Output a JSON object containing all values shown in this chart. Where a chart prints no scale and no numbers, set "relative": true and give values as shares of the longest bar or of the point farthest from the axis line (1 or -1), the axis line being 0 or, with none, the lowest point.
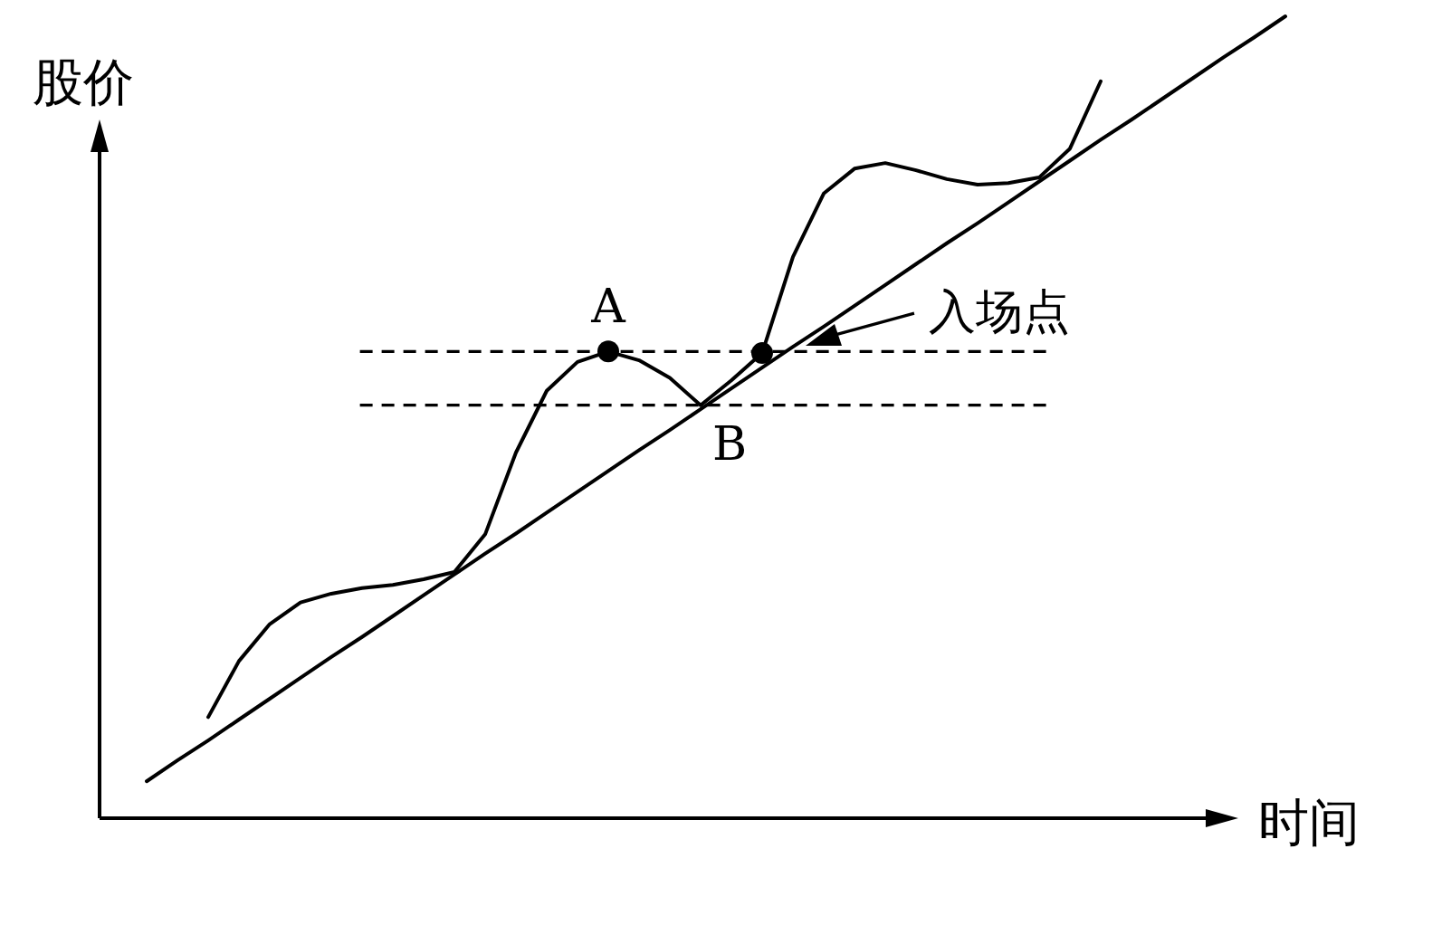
{
  "chart_data": {
    "type": "line",
    "relative": true,
    "xlabel": "时间",
    "ylabel": "股价",
    "categories": [
      null,
      null,
      null,
      null,
      null,
      null,
      null,
      null,
      null,
      null,
      null,
      null,
      null,
      null,
      null,
      null,
      null,
      null,
      null,
      null,
      null,
      null,
      null,
      null,
      null,
      null,
      null,
      null,
      null,
      null,
      null,
      null,
      null,
      null,
      null,
      null,
      null,
      null
    ],
    "series": [
      {
        "type": "line",
        "color": "#000000",
        "values": [
          0.046,
          0.072,
          0.097,
          0.123,
          0.149,
          0.175,
          0.201,
          0.226,
          0.252,
          0.278,
          0.304,
          0.33,
          0.355,
          0.381,
          0.407,
          0.433,
          0.459,
          0.484,
          0.51,
          0.536,
          0.562,
          0.588,
          0.613,
          0.639,
          0.665,
          0.691,
          0.717,
          0.742,
          0.768,
          0.794,
          0.82,
          0.846,
          0.871,
          0.897,
          0.923,
          0.949,
          0.974,
          1.0
        ]
      },
      {
        "type": "line",
        "color": "#000000",
        "values": [
          null,
          null,
          0.126,
          0.196,
          0.242,
          0.269,
          0.28,
          0.287,
          0.291,
          0.298,
          0.307,
          0.354,
          0.456,
          0.533,
          0.569,
          0.582,
          0.571,
          0.549,
          0.515,
          0.546,
          0.58,
          0.7,
          0.779,
          0.81,
          0.817,
          0.808,
          0.797,
          0.79,
          0.792,
          0.799,
          0.835,
          0.919,
          null,
          null,
          null,
          null,
          null,
          null
        ]
      },
      {
        "type": "line",
        "color": "#000000",
        "marker": "circle",
        "values": [
          null,
          null,
          null,
          null,
          null,
          null,
          null,
          null,
          null,
          null,
          null,
          null,
          null,
          null,
          null,
          0.582,
          null,
          null,
          null,
          null,
          0.58,
          null,
          null,
          null,
          null,
          null,
          null,
          null,
          null,
          null,
          null,
          null,
          null,
          null,
          null,
          null,
          null,
          null
        ]
      }
    ],
    "ref_lines": [
      {
        "axis": "y",
        "value": 0.582,
        "line_style": "dashed",
        "color": "#000000"
      },
      {
        "axis": "y",
        "value": 0.515,
        "line_style": "dashed",
        "color": "#000000"
      }
    ],
    "annotations": [
      "A",
      "B",
      "入场点"
    ]
  }
}
